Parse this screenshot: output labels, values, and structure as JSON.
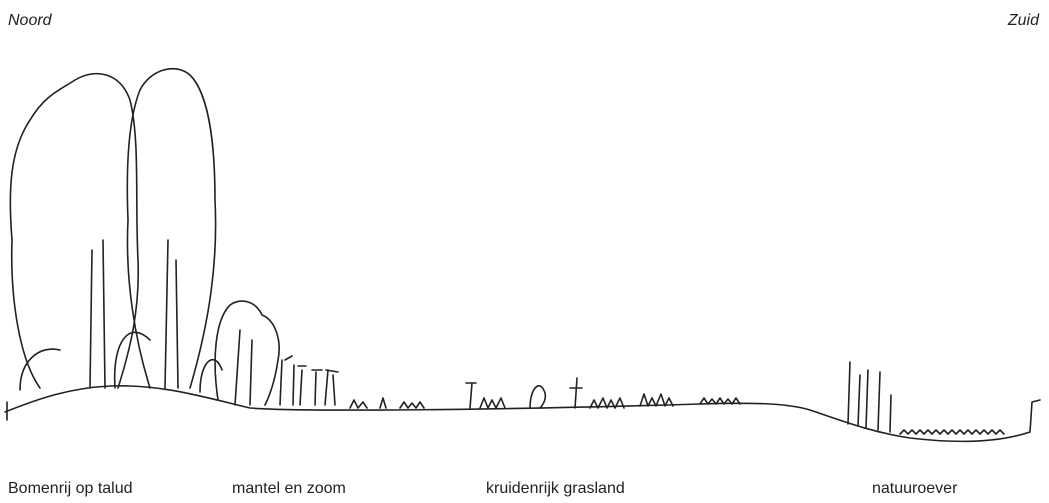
{
  "header": {
    "north": "Noord",
    "south": "Zuid"
  },
  "zones": [
    {
      "label": "Bomenrij op talud"
    },
    {
      "label": "mantel en zoom"
    },
    {
      "label": "kruidenrijk grasland"
    },
    {
      "label": "natuuroever"
    }
  ]
}
